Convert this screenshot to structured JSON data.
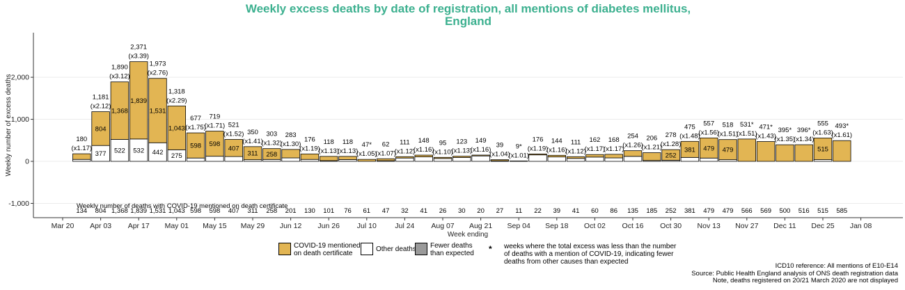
{
  "title_line1": "Weekly excess deaths by date of registration, all mentions of diabetes mellitus,",
  "title_line2": "England",
  "colors": {
    "covid": "#e2b553",
    "other": "#ffffff",
    "fewer": "#9a9a9a",
    "title": "#3cb08f"
  },
  "chart_data": {
    "type": "bar",
    "stacked": true,
    "title": "Weekly excess deaths by date of registration, all mentions of diabetes mellitus, England",
    "xlabel": "Week ending",
    "ylabel": "Weekly number of excess deaths",
    "ylim": [
      -1300,
      2650
    ],
    "yticks": [
      -1000,
      0,
      1000,
      2000
    ],
    "ytick_labels": [
      "-1,000",
      "0",
      "1,000",
      "2,000"
    ],
    "x_dates": [
      "2020-03-27",
      "2020-04-03",
      "2020-04-10",
      "2020-04-17",
      "2020-04-24",
      "2020-05-01",
      "2020-05-08",
      "2020-05-15",
      "2020-05-22",
      "2020-05-29",
      "2020-06-05",
      "2020-06-12",
      "2020-06-19",
      "2020-06-26",
      "2020-07-03",
      "2020-07-10",
      "2020-07-17",
      "2020-07-24",
      "2020-07-31",
      "2020-08-07",
      "2020-08-14",
      "2020-08-21",
      "2020-08-28",
      "2020-09-04",
      "2020-09-11",
      "2020-09-18",
      "2020-09-25",
      "2020-10-02",
      "2020-10-09",
      "2020-10-16",
      "2020-10-23",
      "2020-10-30",
      "2020-11-06",
      "2020-11-13",
      "2020-11-20",
      "2020-11-27",
      "2020-12-04",
      "2020-12-11",
      "2020-12-18",
      "2020-12-25",
      "2021-01-01"
    ],
    "x_ticks": [
      {
        "date": "2020-03-20",
        "label": "Mar 20"
      },
      {
        "date": "2020-04-03",
        "label": "Apr 03"
      },
      {
        "date": "2020-04-17",
        "label": "Apr 17"
      },
      {
        "date": "2020-05-01",
        "label": "May 01"
      },
      {
        "date": "2020-05-15",
        "label": "May 15"
      },
      {
        "date": "2020-05-29",
        "label": "May 29"
      },
      {
        "date": "2020-06-12",
        "label": "Jun 12"
      },
      {
        "date": "2020-06-26",
        "label": "Jun 26"
      },
      {
        "date": "2020-07-10",
        "label": "Jul 10"
      },
      {
        "date": "2020-07-24",
        "label": "Jul 24"
      },
      {
        "date": "2020-08-07",
        "label": "Aug 07"
      },
      {
        "date": "2020-08-21",
        "label": "Aug 21"
      },
      {
        "date": "2020-09-04",
        "label": "Sep 04"
      },
      {
        "date": "2020-09-18",
        "label": "Sep 18"
      },
      {
        "date": "2020-10-02",
        "label": "Oct 02"
      },
      {
        "date": "2020-10-16",
        "label": "Oct 16"
      },
      {
        "date": "2020-10-30",
        "label": "Oct 30"
      },
      {
        "date": "2020-11-13",
        "label": "Nov 13"
      },
      {
        "date": "2020-11-27",
        "label": "Nov 27"
      },
      {
        "date": "2020-12-11",
        "label": "Dec 11"
      },
      {
        "date": "2020-12-25",
        "label": "Dec 25"
      },
      {
        "date": "2021-01-08",
        "label": "Jan 08"
      }
    ],
    "total_excess": [
      180,
      1181,
      1890,
      2371,
      1973,
      1318,
      677,
      719,
      521,
      350,
      303,
      283,
      176,
      118,
      118,
      47,
      62,
      111,
      148,
      95,
      123,
      149,
      39,
      9,
      176,
      144,
      111,
      162,
      168,
      254,
      206,
      278,
      475,
      557,
      518,
      531,
      471,
      395,
      396,
      555,
      493
    ],
    "total_labels": [
      "180",
      "1,181",
      "1,890",
      "2,371",
      "1,973",
      "1,318",
      "677",
      "719",
      "521",
      "350",
      "303",
      "283",
      "176",
      "118",
      "118",
      "47*",
      "62",
      "111",
      "148",
      "95",
      "123",
      "149",
      "39",
      "9*",
      "176",
      "144",
      "111",
      "162",
      "168",
      "254",
      "206",
      "278",
      "475",
      "557",
      "518",
      "531*",
      "471*",
      "395*",
      "396*",
      "555",
      "493*"
    ],
    "ratio_labels": [
      "(x1.17)",
      "(x2.12)",
      "(x3.12)",
      "(x3.39)",
      "(x2.76)",
      "(x2.29)",
      "(x1.75)",
      "(x1.71)",
      "(x1.52)",
      "(x1.41)",
      "(x1.32)",
      "(x1.30)",
      "(x1.19)",
      "(x1.13)",
      "(x1.13)",
      "(x1.05)",
      "(x1.07)",
      "(x1.12)",
      "(x1.16)",
      "(x1.10)",
      "(x1.13)",
      "(x1.16)",
      "(x1.04)",
      "(x1.01)",
      "(x1.19)",
      "(x1.16)",
      "(x1.12)",
      "(x1.17)",
      "(x1.17)",
      "(x1.26)",
      "(x1.21)",
      "(x1.28)",
      "(x1.48)",
      "(x1.56)",
      "(x1.51)",
      "(x1.51)",
      "(x1.43)",
      "(x1.35)",
      "(x1.34)",
      "(x1.63)",
      "(x1.61)"
    ],
    "series": [
      {
        "name": "COVID-19 mentioned on death certificate",
        "values": [
          134,
          804,
          1368,
          1839,
          1531,
          1043,
          598,
          598,
          407,
          311,
          258,
          201,
          130,
          101,
          76,
          47,
          47,
          32,
          41,
          26,
          30,
          20,
          27,
          9,
          22,
          39,
          41,
          60,
          86,
          135,
          185,
          252,
          381,
          479,
          479,
          531,
          471,
          395,
          396,
          515,
          493
        ]
      },
      {
        "name": "Other deaths",
        "values": [
          46,
          377,
          522,
          532,
          442,
          275,
          79,
          121,
          114,
          39,
          45,
          82,
          46,
          17,
          42,
          0,
          15,
          79,
          107,
          69,
          93,
          129,
          12,
          0,
          154,
          105,
          70,
          102,
          82,
          119,
          21,
          26,
          94,
          78,
          39,
          0,
          0,
          0,
          0,
          40,
          0
        ]
      }
    ],
    "bar_labels": {
      "covid": [
        "",
        "804",
        "1,368",
        "1,839",
        "1,531",
        "1,043",
        "598",
        "598",
        "407",
        "311",
        "258",
        "",
        "",
        "",
        "",
        "",
        "",
        "",
        "",
        "",
        "",
        "",
        "",
        "",
        "",
        "",
        "",
        "",
        "",
        "",
        "",
        "252",
        "381",
        "479",
        "479",
        "",
        "",
        "",
        "",
        "515",
        ""
      ],
      "other": [
        "",
        "377",
        "522",
        "532",
        "442",
        "275",
        "",
        "",
        "",
        "",
        "",
        "",
        "",
        "",
        "",
        "",
        "",
        "",
        "",
        "",
        "",
        "",
        "",
        "",
        "",
        "",
        "",
        "",
        "",
        "",
        "",
        "",
        "",
        "",
        "",
        "",
        "",
        "",
        "",
        "",
        ""
      ]
    },
    "covid_counts_label": "Weekly number of deaths with COVID-19 mentioned on death certificate",
    "covid_counts": [
      "134",
      "804",
      "1,368",
      "1,839",
      "1,531",
      "1,043",
      "598",
      "598",
      "407",
      "311",
      "258",
      "201",
      "130",
      "101",
      "76",
      "61",
      "47",
      "32",
      "41",
      "26",
      "30",
      "20",
      "27",
      "11",
      "22",
      "39",
      "41",
      "60",
      "86",
      "135",
      "185",
      "252",
      "381",
      "479",
      "479",
      "566",
      "569",
      "500",
      "516",
      "515",
      "585"
    ]
  },
  "legend": {
    "covid": "COVID-19 mentioned\non death certificate",
    "other": "Other deaths",
    "fewer": "Fewer deaths\nthan expected",
    "star_symbol": "*",
    "star": "weeks where the total excess was less than the number\nof deaths with a mention of COVID-19, indicating fewer\ndeaths from other causes than expected"
  },
  "footer": {
    "line1": "ICD10 reference: All mentions of E10-E14",
    "line2": "Source: Public Health England analysis of ONS death registration data",
    "line3": "Note, deaths registered on 20/21 March 2020 are not displayed"
  }
}
